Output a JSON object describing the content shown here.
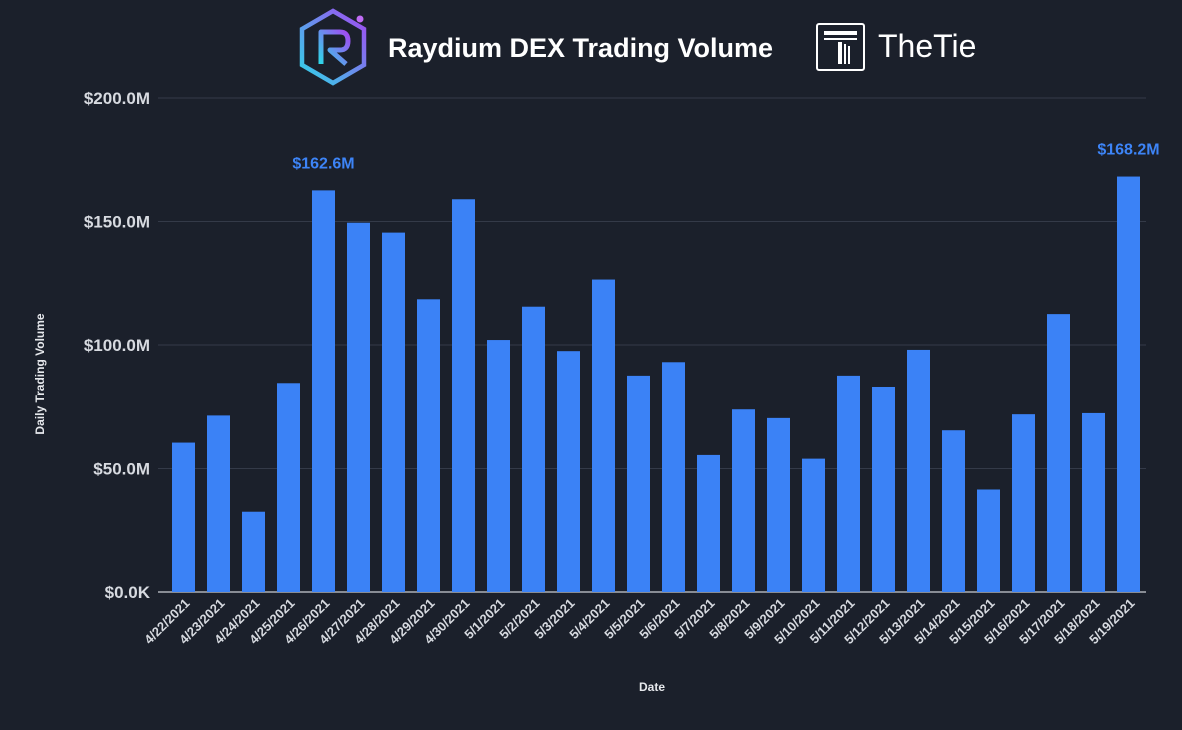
{
  "header": {
    "title": "Raydium DEX Trading Volume",
    "brand": "TheTie",
    "logo_icon": "raydium-logo-icon",
    "brand_icon": "thetie-logo-icon"
  },
  "colors": {
    "background": "#1b202b",
    "bar": "#3b82f6",
    "grid": "#343a48",
    "highlight_label": "#3d84f7"
  },
  "chart_data": {
    "type": "bar",
    "title": "Raydium DEX Trading Volume",
    "xlabel": "Date",
    "ylabel": "Daily Trading Volume",
    "ylim": [
      0,
      200
    ],
    "value_unit": "$M",
    "y_ticks": [
      0,
      50,
      100,
      150,
      200
    ],
    "y_tick_labels": [
      "$0.0K",
      "$50.0M",
      "$100.0M",
      "$150.0M",
      "$200.0M"
    ],
    "grid": true,
    "legend": "none",
    "categories": [
      "4/22/2021",
      "4/23/2021",
      "4/24/2021",
      "4/25/2021",
      "4/26/2021",
      "4/27/2021",
      "4/28/2021",
      "4/29/2021",
      "4/30/2021",
      "5/1/2021",
      "5/2/2021",
      "5/3/2021",
      "5/4/2021",
      "5/5/2021",
      "5/6/2021",
      "5/7/2021",
      "5/8/2021",
      "5/9/2021",
      "5/10/2021",
      "5/11/2021",
      "5/12/2021",
      "5/13/2021",
      "5/14/2021",
      "5/15/2021",
      "5/16/2021",
      "5/17/2021",
      "5/18/2021",
      "5/19/2021"
    ],
    "values": [
      60.5,
      71.5,
      32.5,
      84.5,
      162.6,
      149.5,
      145.5,
      118.5,
      159,
      102,
      115.5,
      97.5,
      126.5,
      87.5,
      93,
      55.5,
      74,
      70.5,
      54,
      87.5,
      83,
      98,
      65.5,
      41.5,
      72,
      112.5,
      72.5,
      168.2
    ],
    "annotations": [
      {
        "category": "4/26/2021",
        "text": "$162.6M"
      },
      {
        "category": "5/19/2021",
        "text": "$168.2M"
      }
    ]
  }
}
